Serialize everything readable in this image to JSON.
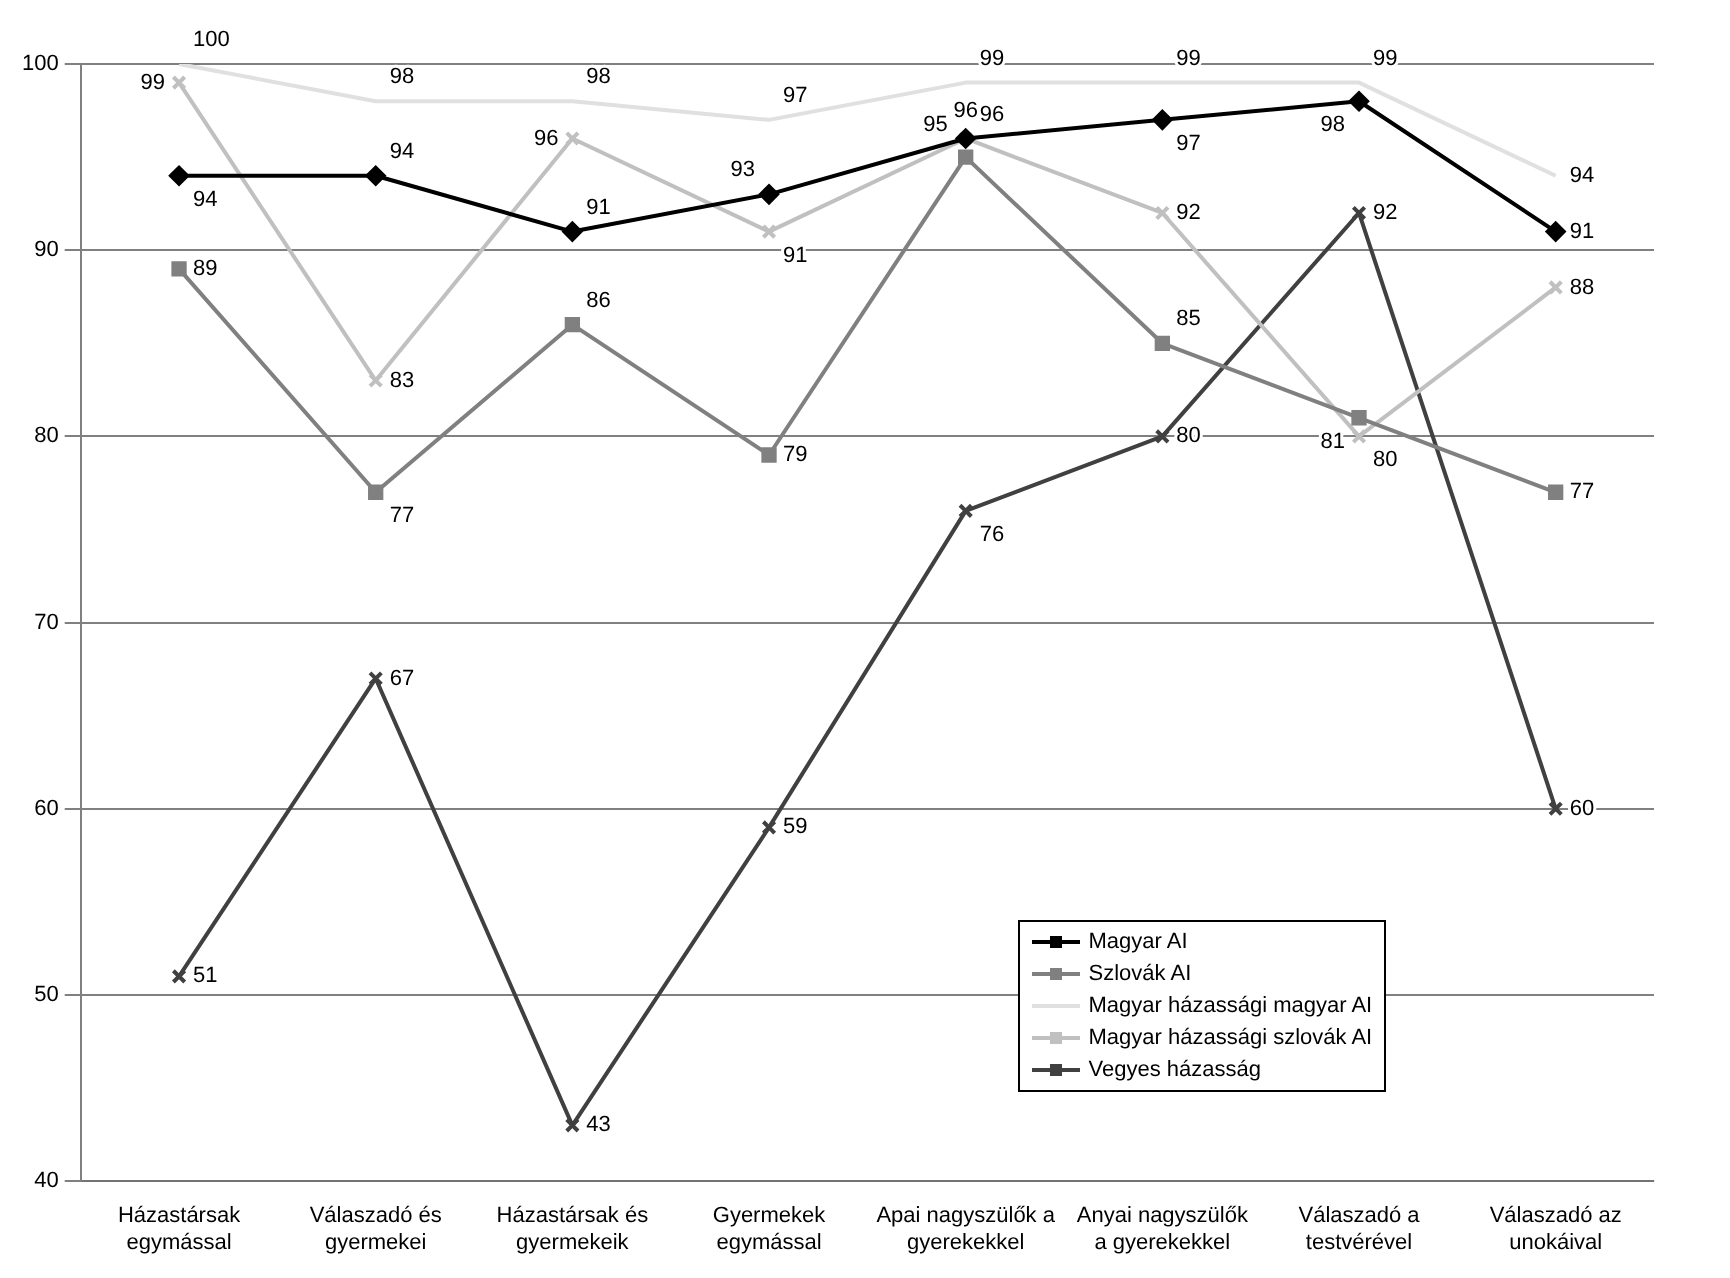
{
  "chart_data": {
    "type": "line",
    "categories": [
      "Házastársak egymással",
      "Válaszadó és gyermekei",
      "Házastársak és gyermekeik",
      "Gyermekek egymással",
      "Apai nagyszülők a gyerekekkel",
      "Anyai nagyszülők a gyerekekkel",
      "Válaszadó a testvérével",
      "Válaszadó az unokáival"
    ],
    "series": [
      {
        "name": "Magyar AI",
        "color": "#000000",
        "marker": "diamond",
        "values": [
          94,
          94,
          91,
          93,
          96,
          97,
          98,
          91
        ]
      },
      {
        "name": "Szlovák AI",
        "color": "#808080",
        "marker": "square",
        "values": [
          89,
          77,
          86,
          79,
          95,
          85,
          81,
          77
        ]
      },
      {
        "name": "Magyar házassági magyar AI",
        "color": "#e0e0e0",
        "marker": "none",
        "values": [
          100,
          98,
          98,
          97,
          99,
          99,
          99,
          94
        ]
      },
      {
        "name": "Magyar házassági szlovák AI",
        "color": "#c0c0c0",
        "marker": "cross",
        "values": [
          99,
          83,
          96,
          91,
          96,
          92,
          80,
          88
        ]
      },
      {
        "name": "Vegyes házasság",
        "color": "#404040",
        "marker": "cross",
        "values": [
          51,
          67,
          43,
          59,
          76,
          80,
          92,
          60
        ]
      }
    ],
    "ylim": [
      40,
      100
    ],
    "yticks": [
      40,
      50,
      60,
      70,
      80,
      90,
      100
    ],
    "grid": "y",
    "legend": "bottom right",
    "data_labels": true,
    "line_style": "solid"
  }
}
